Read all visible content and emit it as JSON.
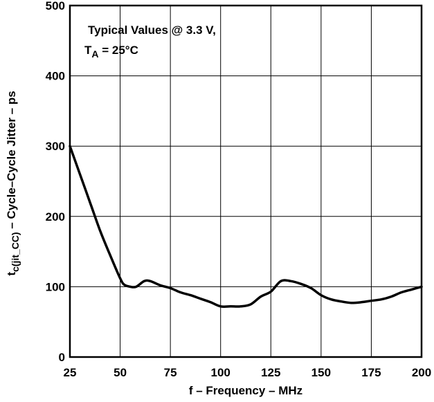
{
  "chart_data": {
    "type": "line",
    "xlabel": "f – Frequency – MHz",
    "ylabel": {
      "t": "t",
      "sub": "c(jit_CC)",
      "rest": " – Cycle–Cycle Jitter – ps"
    },
    "xlim": [
      25,
      200
    ],
    "ylim": [
      0,
      500
    ],
    "xticks": [
      "25",
      "50",
      "75",
      "100",
      "125",
      "150",
      "175",
      "200"
    ],
    "yticks": [
      "0",
      "100",
      "200",
      "300",
      "400",
      "500"
    ],
    "grid": true,
    "annotation": {
      "line1": "Typical Values @ 3.3 V,",
      "line2_t": "T",
      "line2_sub": "A",
      "line2_rest": " = 25°C"
    },
    "series": [
      {
        "x": [
          25,
          30,
          35,
          40,
          45,
          50,
          52,
          55,
          58,
          62,
          65,
          70,
          75,
          80,
          85,
          90,
          95,
          100,
          105,
          110,
          115,
          120,
          125,
          130,
          135,
          140,
          145,
          150,
          155,
          160,
          165,
          170,
          175,
          180,
          185,
          190,
          195,
          200
        ],
        "y": [
          300,
          260,
          220,
          180,
          145,
          112,
          103,
          100,
          100,
          108,
          108,
          102,
          98,
          92,
          88,
          83,
          78,
          72,
          72,
          72,
          75,
          86,
          93,
          108,
          108,
          104,
          98,
          88,
          82,
          79,
          77,
          78,
          80,
          82,
          86,
          92,
          96,
          100
        ]
      }
    ]
  }
}
